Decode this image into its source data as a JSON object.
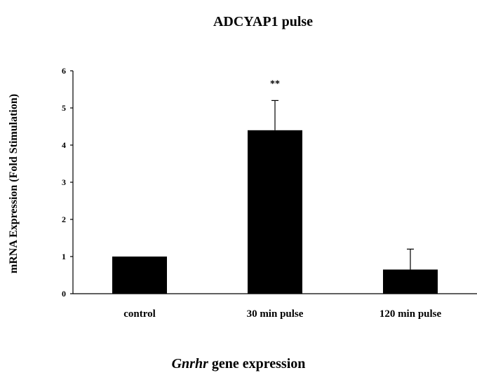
{
  "chart_data": {
    "type": "bar",
    "title": "ADCYAP1 pulse",
    "ylabel": "mRNA Expression (Fold Stimulation)",
    "xlabel_italic": "Gnrhr",
    "xlabel_rest": "gene expression",
    "categories": [
      "control",
      "30 min pulse",
      "120 min pulse"
    ],
    "values": [
      1.0,
      4.4,
      0.65
    ],
    "error_plus": [
      0,
      0.8,
      0.55
    ],
    "annotations": [
      "",
      "**",
      ""
    ],
    "ylim": [
      0,
      6
    ],
    "yticks": [
      "0",
      "1",
      "2",
      "3",
      "4",
      "5",
      "6"
    ],
    "grid": false,
    "bar_color": "#000000"
  }
}
